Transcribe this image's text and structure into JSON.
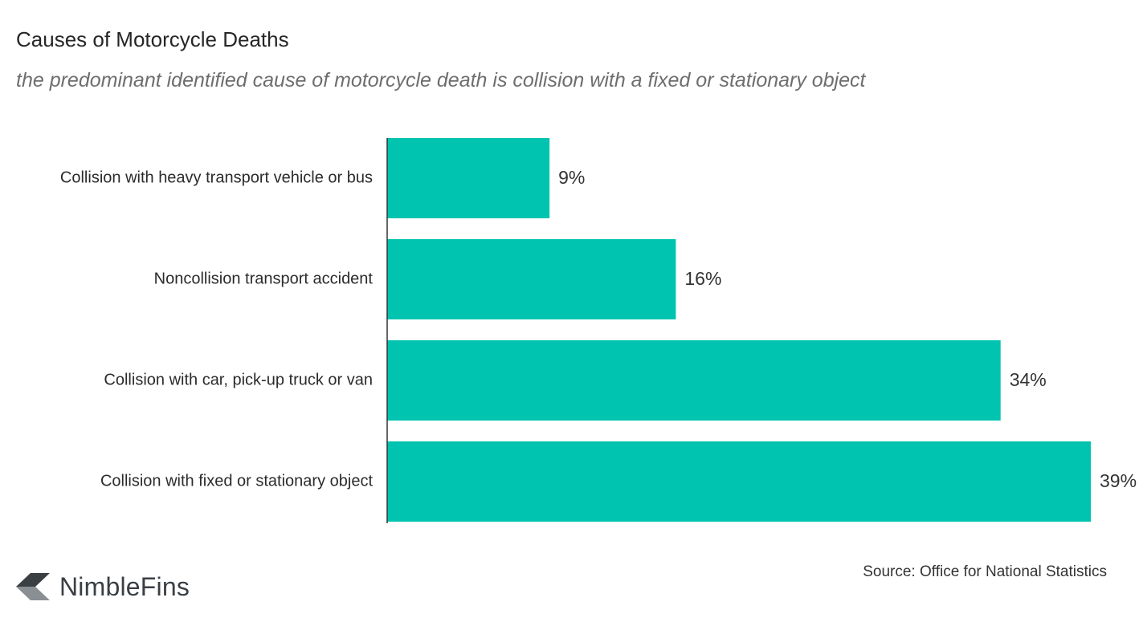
{
  "chart_data": {
    "type": "bar",
    "orientation": "horizontal",
    "title": "Causes of Motorcycle Deaths",
    "subtitle": "the predominant identified cause of motorcycle death is collision with a fixed or stationary object",
    "categories": [
      "Collision with heavy transport vehicle or bus",
      "Noncollision transport accident",
      "Collision with car, pick-up truck or van",
      "Collision with fixed or stationary object"
    ],
    "values": [
      9,
      16,
      34,
      39
    ],
    "value_labels": [
      "9%",
      "16%",
      "34%",
      "39%"
    ],
    "xlim": [
      0,
      39
    ],
    "grid": false,
    "bar_color": "#00c4b0"
  },
  "source": "Source: Office for National Statistics",
  "brand": {
    "name": "NimbleFins",
    "logo_color": "#3a3f44"
  }
}
